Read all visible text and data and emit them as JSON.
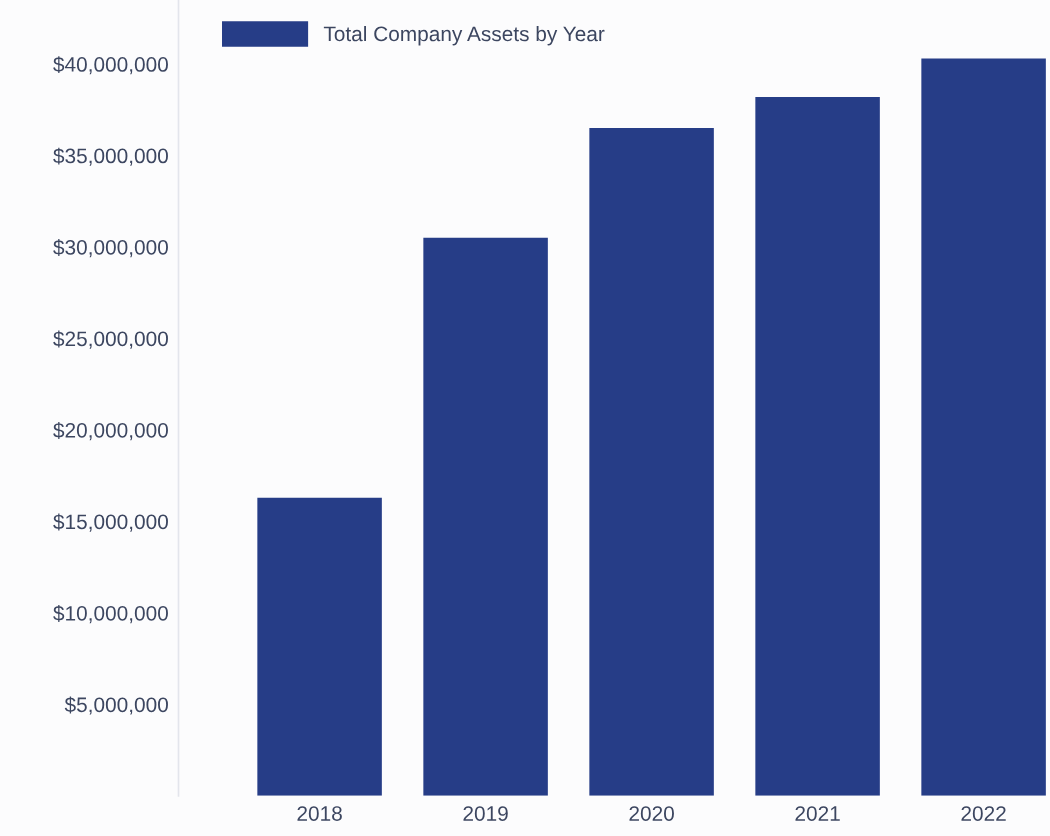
{
  "chart_data": {
    "type": "bar",
    "categories": [
      "2018",
      "2019",
      "2020",
      "2021",
      "2022"
    ],
    "series": [
      {
        "name": "Total Company Assets by Year",
        "color": "#263d87",
        "values": [
          16300000,
          30500000,
          36500000,
          38200000,
          40300000
        ]
      }
    ],
    "ylim": [
      0,
      43500000
    ],
    "yticks": [
      {
        "value": 5000000,
        "label": "$5,000,000"
      },
      {
        "value": 10000000,
        "label": "$10,000,000"
      },
      {
        "value": 15000000,
        "label": "$15,000,000"
      },
      {
        "value": 20000000,
        "label": "$20,000,000"
      },
      {
        "value": 25000000,
        "label": "$25,000,000"
      },
      {
        "value": 30000000,
        "label": "$30,000,000"
      },
      {
        "value": 35000000,
        "label": "$35,000,000"
      },
      {
        "value": 40000000,
        "label": "$40,000,000"
      }
    ],
    "legend": "top left"
  }
}
